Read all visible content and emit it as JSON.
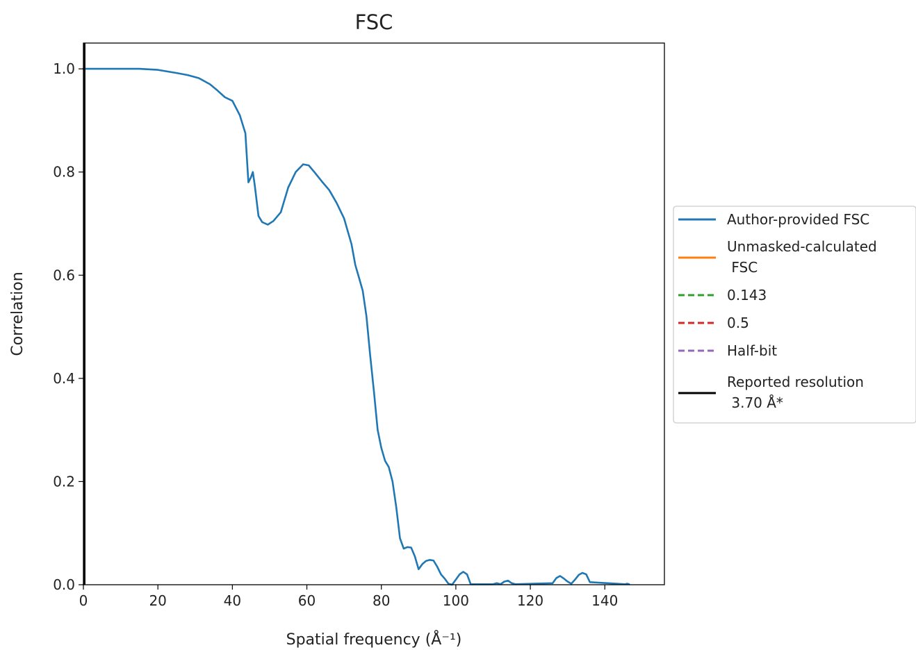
{
  "chart_data": {
    "type": "line",
    "title": "FSC",
    "xlabel": "Spatial frequency (Å⁻¹)",
    "ylabel": "Correlation",
    "xlim": [
      0,
      156
    ],
    "ylim": [
      0,
      1.05
    ],
    "xticks": [
      0,
      20,
      40,
      60,
      80,
      100,
      120,
      140
    ],
    "yticks": [
      0.0,
      0.2,
      0.4,
      0.6,
      0.8,
      1.0
    ],
    "xtick_labels": [
      "0",
      "20",
      "40",
      "60",
      "80",
      "100",
      "120",
      "140"
    ],
    "ytick_labels": [
      "0.0",
      "0.2",
      "0.4",
      "0.6",
      "0.8",
      "1.0"
    ],
    "grid": false,
    "legend_placement": "right, outside plot",
    "series": [
      {
        "name": "Author-provided FSC",
        "color": "#1f77b4",
        "style": "solid",
        "x": [
          0,
          5,
          10,
          15,
          20,
          25,
          28,
          31,
          34,
          36,
          38,
          40,
          42,
          43.5,
          44.3,
          45,
          45.5,
          46,
          47,
          48,
          49.5,
          51,
          53,
          55,
          57,
          59,
          60.5,
          62,
          64,
          66,
          68,
          70,
          72,
          73,
          74,
          75,
          76,
          77,
          78,
          79,
          80,
          81,
          82,
          83,
          84,
          85,
          86,
          87,
          88,
          89,
          90,
          91,
          92,
          93,
          94,
          95,
          96,
          97,
          98,
          99,
          100,
          101,
          102,
          103,
          104,
          109,
          110,
          111,
          112,
          113,
          114,
          115,
          116,
          126,
          127,
          128,
          129,
          130,
          131,
          132,
          133,
          134,
          135,
          136,
          145.5,
          146,
          146.5
        ],
        "y": [
          1.0,
          1.0,
          1.0,
          1.0,
          0.998,
          0.992,
          0.988,
          0.982,
          0.97,
          0.958,
          0.945,
          0.938,
          0.91,
          0.875,
          0.78,
          0.79,
          0.8,
          0.775,
          0.715,
          0.703,
          0.698,
          0.705,
          0.722,
          0.77,
          0.8,
          0.815,
          0.813,
          0.8,
          0.782,
          0.765,
          0.74,
          0.71,
          0.66,
          0.62,
          0.595,
          0.57,
          0.52,
          0.445,
          0.375,
          0.3,
          0.265,
          0.24,
          0.228,
          0.2,
          0.15,
          0.09,
          0.07,
          0.073,
          0.072,
          0.055,
          0.03,
          0.04,
          0.046,
          0.048,
          0.047,
          0.035,
          0.02,
          0.012,
          0.002,
          0.0,
          0.01,
          0.02,
          0.025,
          0.02,
          0.001,
          0.001,
          0.001,
          0.003,
          0.001,
          0.006,
          0.008,
          0.003,
          0.001,
          0.003,
          0.013,
          0.017,
          0.012,
          0.006,
          0.002,
          0.01,
          0.019,
          0.023,
          0.02,
          0.005,
          0.001,
          0.002,
          0.001
        ]
      },
      {
        "name": "Unmasked-calculated\n FSC",
        "color": "#ff7f0e",
        "style": "solid",
        "x": [
          0,
          0.3
        ],
        "y": [
          0.0,
          0.002
        ]
      },
      {
        "name": "0.143",
        "color": "#2ca02c",
        "style": "dashed",
        "x": [],
        "y": []
      },
      {
        "name": "0.5",
        "color": "#d62728",
        "style": "dashed",
        "x": [],
        "y": []
      },
      {
        "name": "Half-bit",
        "color": "#9467bd",
        "style": "dashed",
        "x": [],
        "y": []
      },
      {
        "name": "Reported resolution\n 3.70 Å*",
        "color": "#000000",
        "style": "solid",
        "vline_x": 0.27
      }
    ]
  }
}
